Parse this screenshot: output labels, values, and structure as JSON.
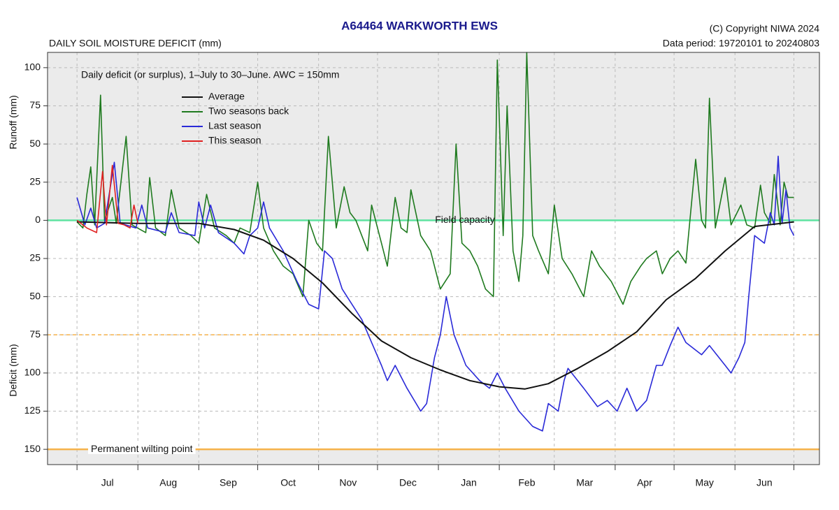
{
  "chart_data": {
    "type": "line",
    "title": "A64464  WARKWORTH EWS",
    "copyright": "(C) Copyright NIWA  2024",
    "data_period": "Data period:  19720101  to  20240803",
    "subtitle": "DAILY SOIL MOISTURE DEFICIT (mm)",
    "annotation": "Daily deficit (or surplus), 1–July to 30–June.  AWC = 150mm",
    "y_label_top": "Runoff (mm)",
    "y_label_bottom": "Deficit (mm)",
    "categories": [
      "Jul",
      "Aug",
      "Sep",
      "Oct",
      "Nov",
      "Dec",
      "Jan",
      "Feb",
      "Mar",
      "Apr",
      "May",
      "Jun"
    ],
    "xticks": [
      0,
      31,
      62,
      92,
      123,
      153,
      184,
      215,
      243,
      274,
      304,
      335,
      365
    ],
    "xlim": [
      -15,
      378
    ],
    "ylim": [
      -160,
      110
    ],
    "yticks": [
      {
        "value": -150,
        "label": "150"
      },
      {
        "value": -125,
        "label": "125"
      },
      {
        "value": -100,
        "label": "100"
      },
      {
        "value": -75,
        "label": "75"
      },
      {
        "value": -50,
        "label": "50"
      },
      {
        "value": -25,
        "label": "25"
      },
      0,
      25,
      50,
      75,
      100
    ],
    "grid": true,
    "reference_lines": [
      {
        "value": 0,
        "label": "Field capacity",
        "color": "#5fe3a0",
        "style": "solid"
      },
      {
        "value": -75,
        "color": "#f6b24a",
        "style": "dashed"
      },
      {
        "value": -150,
        "label": "Permanent wilting point",
        "color": "#f6b24a",
        "style": "solid"
      }
    ],
    "series": [
      {
        "name": "Average",
        "color": "#111111",
        "x": [
          0,
          30,
          62,
          80,
          95,
          110,
          125,
          140,
          155,
          170,
          185,
          200,
          215,
          228,
          240,
          255,
          270,
          285,
          300,
          315,
          330,
          345,
          365
        ],
        "values": [
          -1,
          -2,
          -2,
          -6,
          -13,
          -25,
          -41,
          -61,
          -79,
          -90,
          -98,
          -105,
          -109,
          -110.5,
          -107,
          -97,
          -86,
          -73,
          -52,
          -38,
          -20,
          -4,
          -1
        ]
      },
      {
        "name": "Two seasons back",
        "color": "#1f7a1f",
        "x": [
          0,
          3,
          5,
          7,
          9,
          12,
          14,
          18,
          20,
          25,
          28,
          35,
          37,
          40,
          45,
          48,
          52,
          58,
          62,
          66,
          70,
          76,
          80,
          83,
          88,
          92,
          95,
          100,
          105,
          110,
          115,
          118,
          122,
          125,
          128,
          132,
          136,
          139,
          142,
          148,
          150,
          155,
          158,
          162,
          165,
          168,
          170,
          175,
          180,
          185,
          190,
          193,
          196,
          200,
          204,
          208,
          212,
          214,
          217,
          219,
          222,
          225,
          227,
          229,
          232,
          235,
          240,
          243,
          247,
          252,
          258,
          262,
          266,
          272,
          278,
          282,
          287,
          290,
          295,
          298,
          302,
          306,
          310,
          315,
          318,
          320,
          322,
          325,
          330,
          333,
          338,
          341,
          345,
          348,
          350,
          353,
          355,
          358,
          360,
          362,
          365
        ],
        "values": [
          -1,
          -5,
          17,
          35,
          -3,
          82,
          0,
          15,
          -2,
          55,
          -3,
          -8,
          28,
          -5,
          -10,
          20,
          -5,
          -10,
          -15,
          17,
          -5,
          -10,
          -15,
          -5,
          -8,
          25,
          -5,
          -20,
          -30,
          -35,
          -50,
          0,
          -15,
          -20,
          55,
          -5,
          22,
          5,
          0,
          -20,
          10,
          -15,
          -30,
          15,
          -5,
          -8,
          20,
          -10,
          -20,
          -45,
          -35,
          50,
          -15,
          -20,
          -30,
          -45,
          -50,
          105,
          -10,
          75,
          -20,
          -40,
          -10,
          110,
          -10,
          -20,
          -35,
          10,
          -25,
          -35,
          -50,
          -20,
          -30,
          -40,
          -55,
          -40,
          -30,
          -25,
          -20,
          -35,
          -25,
          -20,
          -28,
          40,
          0,
          -5,
          80,
          -5,
          28,
          -3,
          10,
          -3,
          -5,
          23,
          5,
          -2,
          30,
          -3,
          25,
          15,
          15
        ]
      },
      {
        "name": "Last season",
        "color": "#2a2ad8",
        "x": [
          0,
          4,
          7,
          10,
          14,
          19,
          22,
          30,
          33,
          36,
          45,
          48,
          52,
          60,
          62,
          65,
          68,
          72,
          80,
          85,
          88,
          92,
          95,
          98,
          105,
          112,
          118,
          123,
          126,
          130,
          135,
          140,
          145,
          150,
          155,
          158,
          162,
          168,
          175,
          178,
          182,
          185,
          188,
          192,
          198,
          205,
          210,
          214,
          218,
          225,
          232,
          237,
          240,
          245,
          248,
          250,
          258,
          265,
          270,
          275,
          280,
          285,
          290,
          295,
          298,
          302,
          306,
          310,
          318,
          322,
          330,
          333,
          337,
          340,
          342,
          345,
          350,
          353,
          355,
          357,
          359,
          361,
          363,
          365
        ],
        "values": [
          15,
          -3,
          8,
          -5,
          -2,
          38,
          -2,
          -5,
          10,
          -5,
          -8,
          5,
          -8,
          -10,
          12,
          -5,
          10,
          -8,
          -15,
          -22,
          -10,
          -5,
          12,
          -5,
          -20,
          -40,
          -55,
          -58,
          -20,
          -25,
          -45,
          -55,
          -65,
          -80,
          -95,
          -105,
          -95,
          -110,
          -125,
          -120,
          -90,
          -75,
          -50,
          -75,
          -95,
          -105,
          -110,
          -100,
          -110,
          -125,
          -135,
          -138,
          -120,
          -125,
          -105,
          -97,
          -110,
          -122,
          -118,
          -125,
          -110,
          -125,
          -118,
          -95,
          -95,
          -82,
          -70,
          -80,
          -88,
          -82,
          -95,
          -100,
          -90,
          -80,
          -50,
          -10,
          -15,
          5,
          -3,
          42,
          -2,
          20,
          -5,
          -10
        ]
      },
      {
        "name": "This season",
        "color": "#e02020",
        "x": [
          0,
          5,
          10,
          13,
          15,
          18,
          21,
          24,
          27,
          29,
          31
        ],
        "values": [
          0,
          -5,
          -8,
          32,
          -3,
          36,
          -2,
          -3,
          -5,
          10,
          -2
        ]
      }
    ]
  }
}
